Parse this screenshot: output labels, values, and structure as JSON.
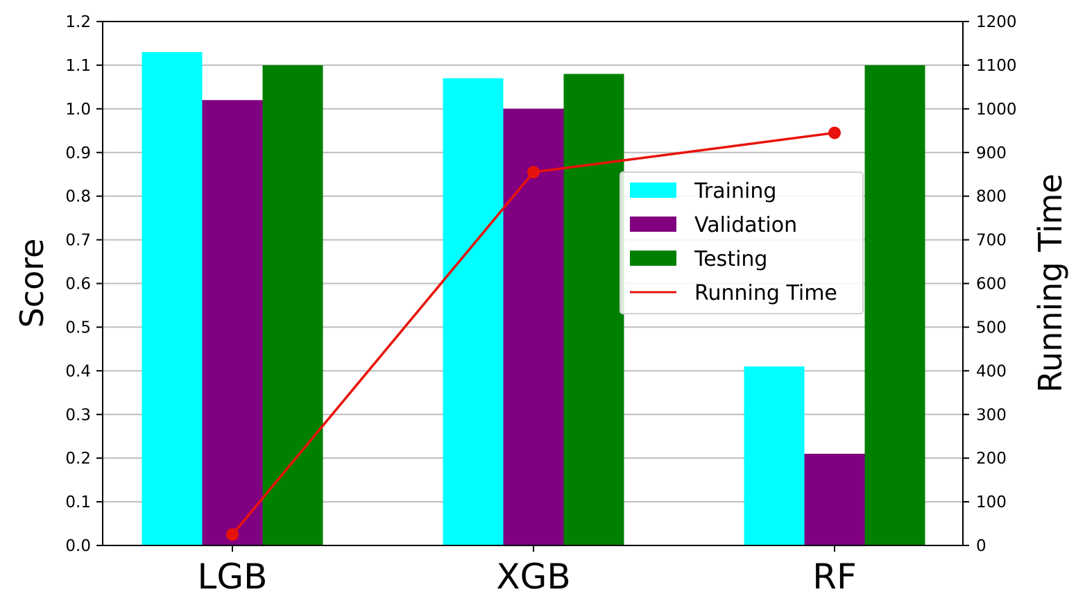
{
  "chart_data": {
    "type": "bar",
    "categories": [
      "LGB",
      "XGB",
      "RF"
    ],
    "series": [
      {
        "name": "Training",
        "values": [
          1.13,
          1.07,
          0.41
        ],
        "color": "#00ffff"
      },
      {
        "name": "Validation",
        "values": [
          1.02,
          1.0,
          0.21
        ],
        "color": "#800080"
      },
      {
        "name": "Testing",
        "values": [
          1.1,
          1.08,
          1.1
        ],
        "color": "#008000"
      }
    ],
    "line_series": {
      "name": "Running Time",
      "values": [
        25,
        855,
        945
      ],
      "color": "#e8120c",
      "axis": "right"
    },
    "ylabel": "Score",
    "y2label": "Running Time",
    "ylim": [
      0,
      1.2
    ],
    "y2lim": [
      0,
      1200
    ],
    "yticks": [
      "0.0",
      "0.1",
      "0.2",
      "0.3",
      "0.4",
      "0.5",
      "0.6",
      "0.7",
      "0.8",
      "0.9",
      "1.0",
      "1.1",
      "1.2"
    ],
    "y2ticks": [
      "0",
      "100",
      "200",
      "300",
      "400",
      "500",
      "600",
      "700",
      "800",
      "900",
      "1000",
      "1100",
      "1200"
    ],
    "grid": "horizontal",
    "legend_position": "center-right"
  }
}
